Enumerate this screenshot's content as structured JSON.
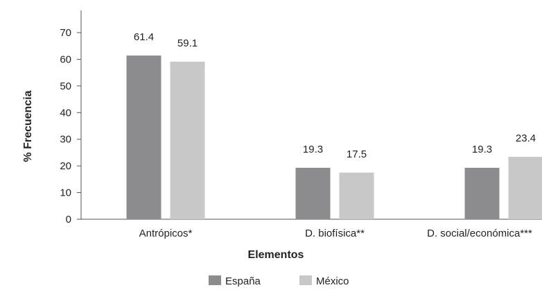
{
  "chart_data": {
    "type": "bar",
    "ylabel": "% Frecuencia",
    "xlabel": "Elementos",
    "categories": [
      "Antrópicos*",
      "D. biofísica**",
      "D. social/económica***"
    ],
    "series": [
      {
        "name": "España",
        "values": [
          61.4,
          19.3,
          19.3
        ],
        "labels": [
          "61.4",
          "19.3",
          "19.3"
        ],
        "color": "#8c8c8e"
      },
      {
        "name": "México",
        "values": [
          59.1,
          17.5,
          23.4
        ],
        "labels": [
          "59.1",
          "17.5",
          "23.4"
        ],
        "color": "#c8c8c9"
      }
    ],
    "ylim": [
      0,
      70
    ],
    "yticks": [
      0,
      10,
      20,
      30,
      40,
      50,
      60,
      70
    ],
    "grid": false,
    "legend": "bottom-center"
  }
}
